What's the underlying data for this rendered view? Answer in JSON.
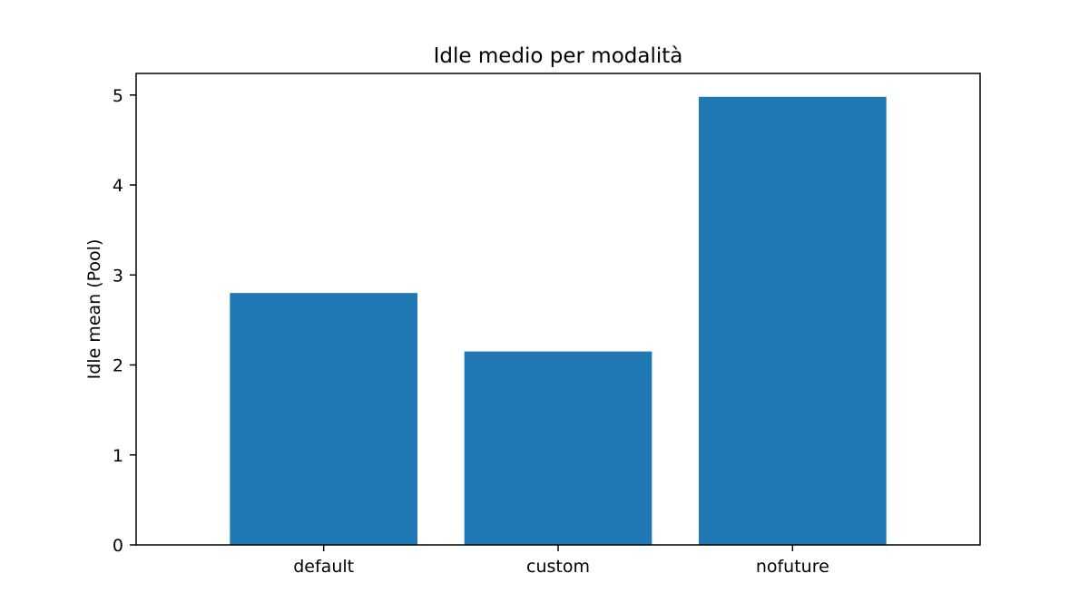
{
  "chart_data": {
    "type": "bar",
    "title": "Idle medio per modalità",
    "xlabel": "",
    "ylabel": "Idle mean (Pool)",
    "categories": [
      "default",
      "custom",
      "nofuture"
    ],
    "values": [
      2.8,
      2.15,
      4.98
    ],
    "ylim": [
      0,
      5.24
    ],
    "yticks": [
      0,
      1,
      2,
      3,
      4,
      5
    ],
    "grid": false,
    "legend": "none",
    "bar_color": "#1f77b4"
  }
}
